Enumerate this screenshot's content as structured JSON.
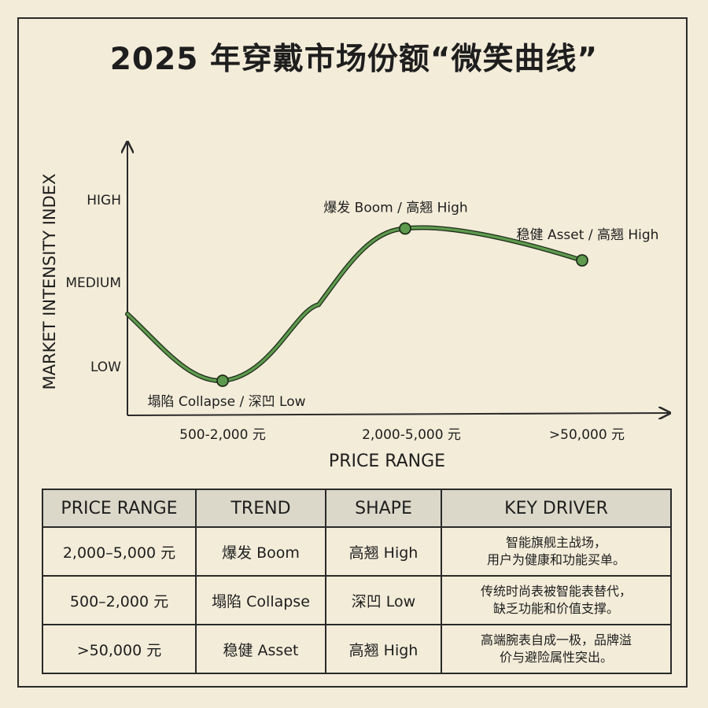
{
  "title": "2025 年穿戴市场份额“微笑曲线”",
  "chart_data": {
    "type": "line",
    "title": "2025 年穿戴市场份额“微笑曲线”",
    "xlabel": "PRICE RANGE",
    "ylabel": "MARKET INTENSITY INDEX",
    "y_ticks": [
      "LOW",
      "MEDIUM",
      "HIGH"
    ],
    "ylim": [
      0,
      4
    ],
    "categories": [
      "500-2,000 元",
      "2,000-5,000 元",
      ">50,000 元"
    ],
    "series": [
      {
        "name": "Market Intensity",
        "color": "#5e9a4e",
        "x": [
          0,
          1,
          2
        ],
        "values": [
          0.9,
          3.05,
          2.6
        ],
        "labels": [
          "塌陷 Collapse / 深凹 Low",
          "爆发 Boom / 高翘 High",
          "稳健 Asset / 高翘 High"
        ]
      }
    ]
  },
  "table": {
    "headers": [
      "PRICE RANGE",
      "TREND",
      "SHAPE",
      "KEY DRIVER"
    ],
    "rows": [
      {
        "range": "2,000–5,000 元",
        "trend": "爆发 Boom",
        "shape": "高翘 High",
        "driver_1": "智能旗舰主战场，",
        "driver_2": "用户为健康和功能买单。"
      },
      {
        "range": "500–2,000 元",
        "trend": "塌陷 Collapse",
        "shape": "深凹 Low",
        "driver_1": "传统时尚表被智能表替代，",
        "driver_2": "缺乏功能和价值支撑。"
      },
      {
        "range": ">50,000 元",
        "trend": "稳健 Asset",
        "shape": "高翘 High",
        "driver_1": "高端腕表自成一极，品牌溢",
        "driver_2": "价与避险属性突出。"
      }
    ]
  }
}
